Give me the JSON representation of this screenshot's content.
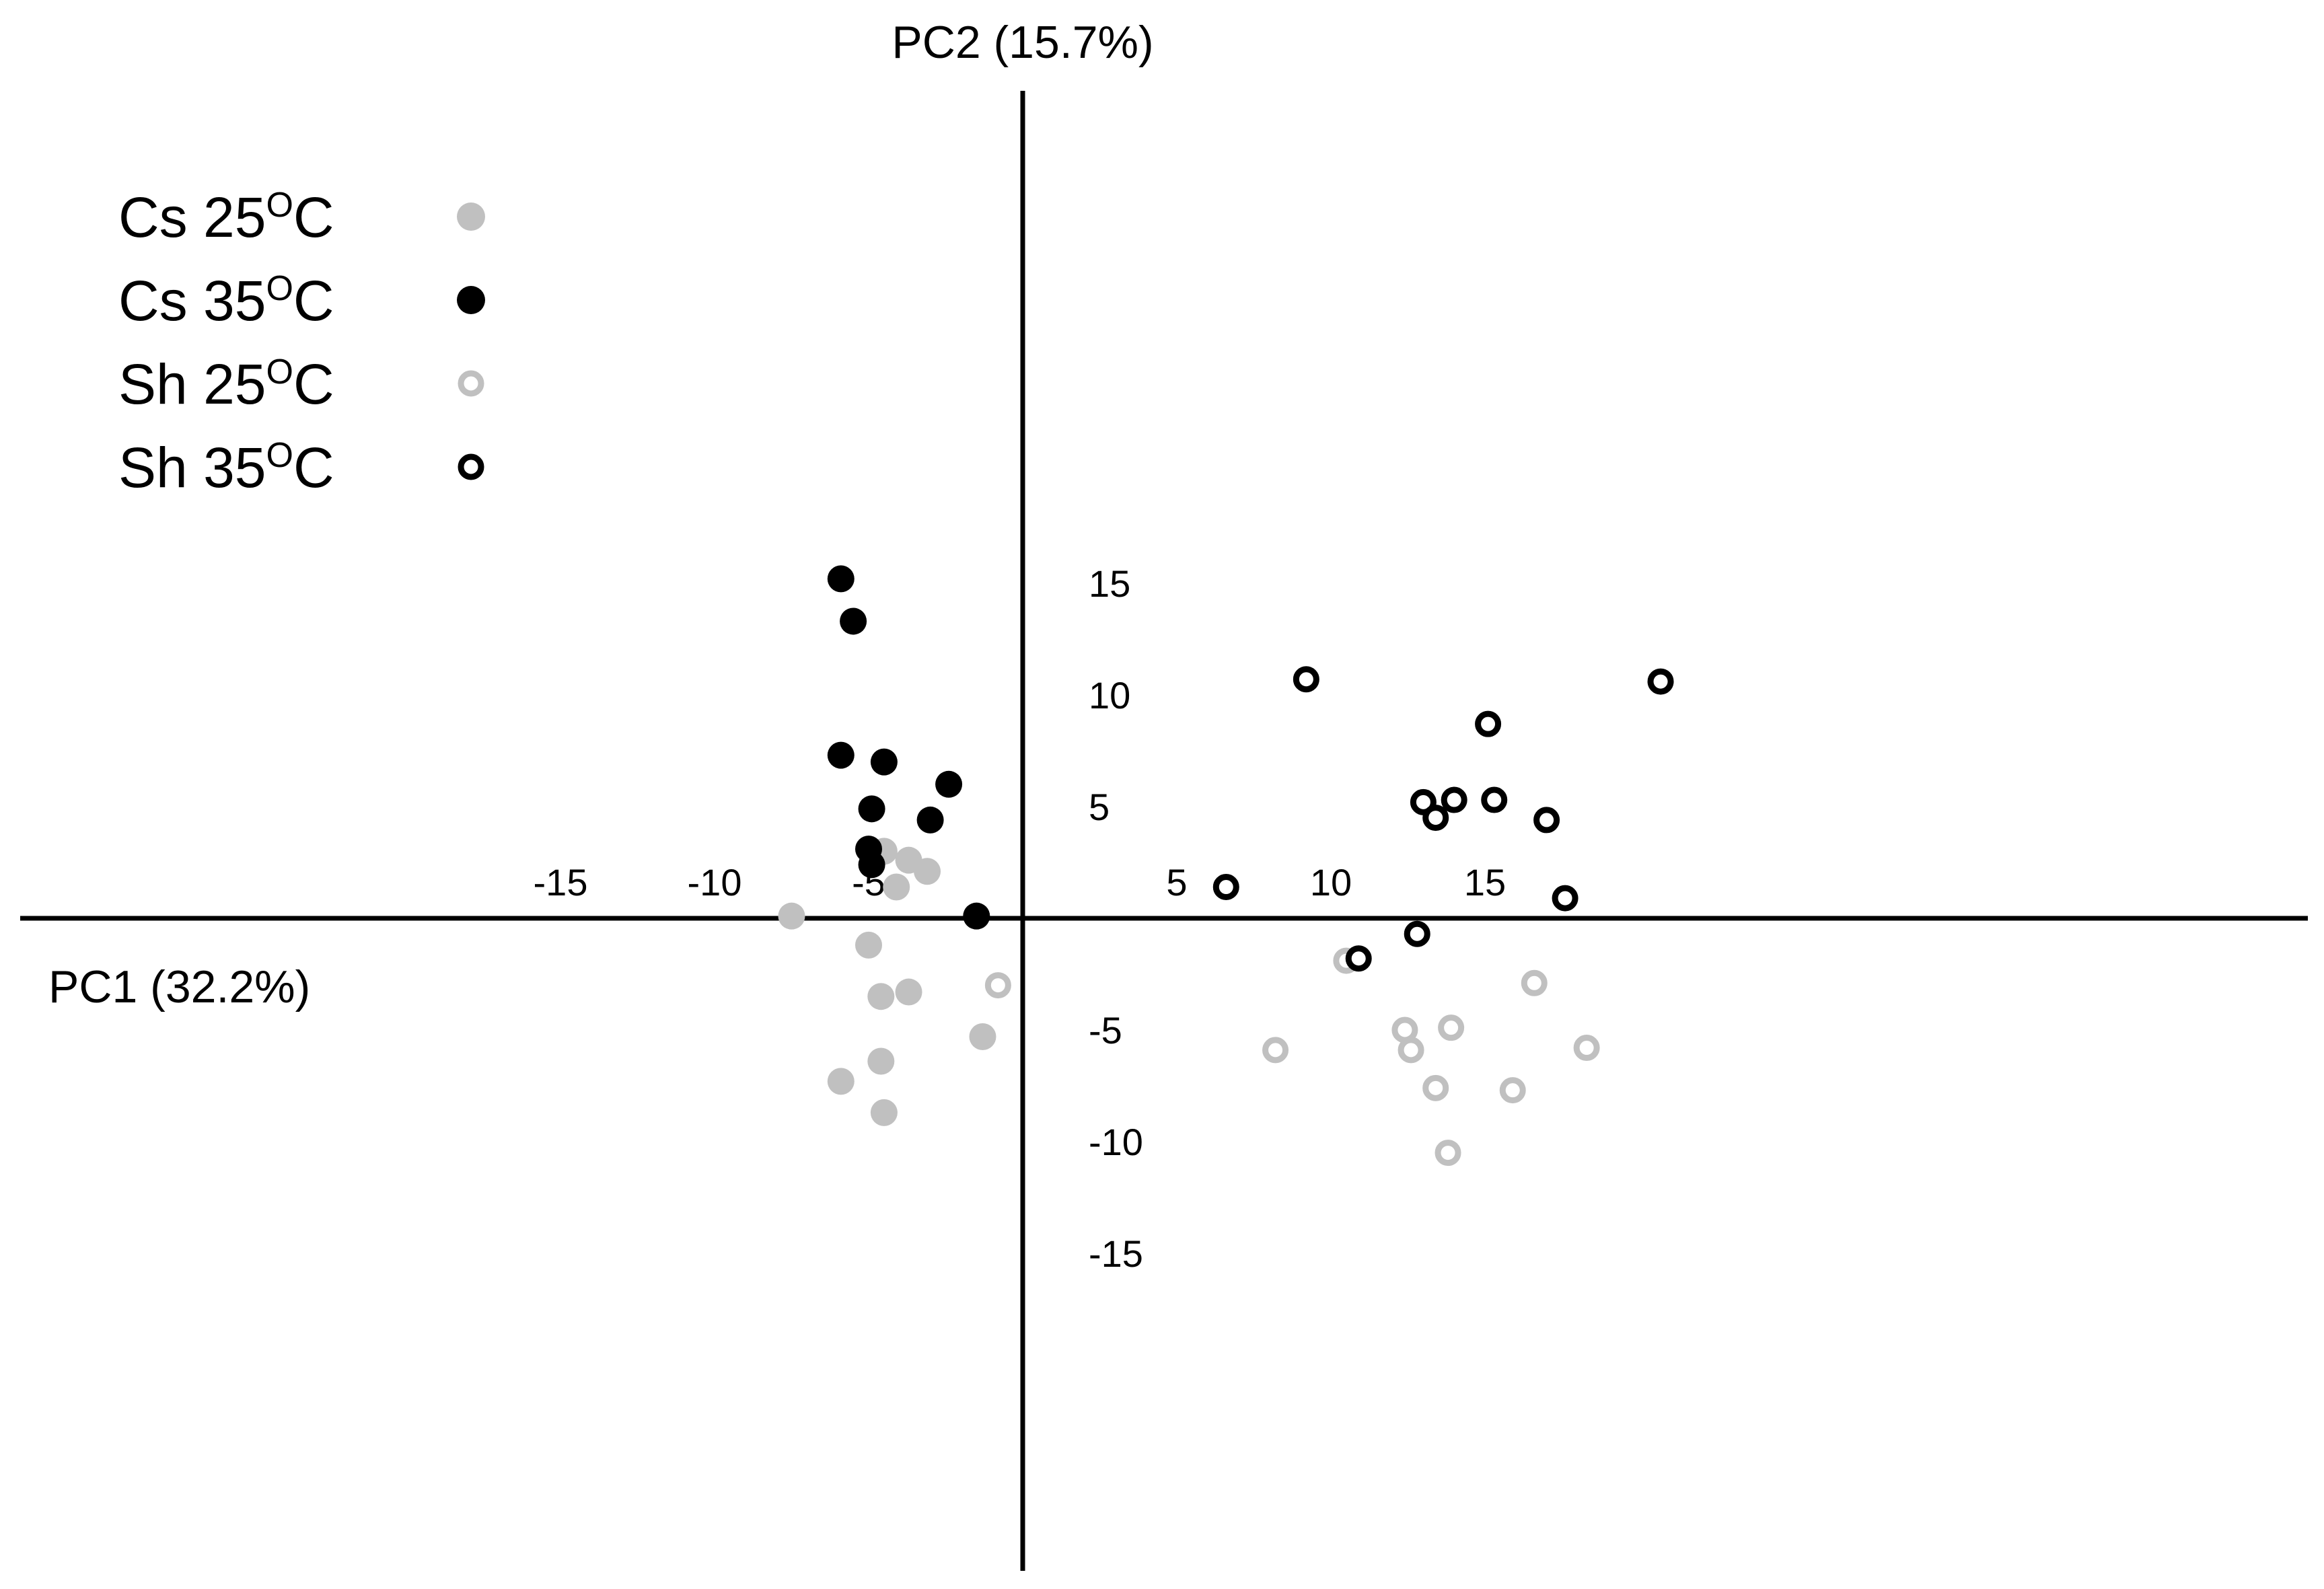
{
  "chart_data": {
    "type": "scatter",
    "title": "",
    "xlabel": "PC1 (32.2%)",
    "ylabel": "PC2 (15.7%)",
    "xlim": [
      -16.5,
      21
    ],
    "ylim": [
      -16,
      19
    ],
    "xticks": [
      -15,
      -10,
      -5,
      5,
      10,
      15
    ],
    "xtick_labels": [
      "-15",
      "-10",
      "-5",
      "5",
      "10",
      "15"
    ],
    "yticks": [
      15,
      10,
      5,
      -5,
      -10,
      -15
    ],
    "ytick_labels": [
      "15",
      "10",
      "5",
      "-5",
      "-10",
      "-15"
    ],
    "grid": false,
    "legend_position": "top-left",
    "series": [
      {
        "name_base": "Cs 25",
        "name_suffix": "C",
        "degree_mark": "O",
        "marker": "filled",
        "color": "#c0c0c0",
        "points": [
          [
            -4.5,
            3.0
          ],
          [
            -3.7,
            2.6
          ],
          [
            -3.1,
            2.1
          ],
          [
            -4.1,
            1.4
          ],
          [
            -7.5,
            0.1
          ],
          [
            -5.0,
            -1.2
          ],
          [
            -4.6,
            -3.5
          ],
          [
            -3.7,
            -3.3
          ],
          [
            -1.3,
            -5.3
          ],
          [
            -4.6,
            -6.4
          ],
          [
            -5.9,
            -7.3
          ],
          [
            -4.5,
            -8.7
          ]
        ]
      },
      {
        "name_base": "Cs 35",
        "name_suffix": "C",
        "degree_mark": "O",
        "marker": "filled",
        "color": "#000000",
        "points": [
          [
            -5.9,
            15.2
          ],
          [
            -5.5,
            13.3
          ],
          [
            -5.9,
            7.3
          ],
          [
            -4.5,
            7.0
          ],
          [
            -2.4,
            6.0
          ],
          [
            -4.9,
            4.9
          ],
          [
            -3.0,
            4.4
          ],
          [
            -5.0,
            3.1
          ],
          [
            -4.9,
            2.4
          ],
          [
            -1.5,
            0.1
          ]
        ]
      },
      {
        "name_base": "Sh 25",
        "name_suffix": "C",
        "degree_mark": "O",
        "marker": "open",
        "color": "#c0c0c0",
        "points": [
          [
            -0.8,
            -3.0
          ],
          [
            10.5,
            -1.9
          ],
          [
            16.6,
            -2.9
          ],
          [
            12.4,
            -5.0
          ],
          [
            13.9,
            -4.9
          ],
          [
            8.2,
            -5.9
          ],
          [
            12.6,
            -5.9
          ],
          [
            18.3,
            -5.8
          ],
          [
            13.4,
            -7.6
          ],
          [
            15.9,
            -7.7
          ],
          [
            13.8,
            -10.5
          ]
        ]
      },
      {
        "name_base": "Sh 35",
        "name_suffix": "C",
        "degree_mark": "O",
        "marker": "open",
        "color": "#000000",
        "points": [
          [
            9.2,
            10.7
          ],
          [
            20.7,
            10.6
          ],
          [
            15.1,
            8.7
          ],
          [
            13.0,
            5.2
          ],
          [
            14.0,
            5.3
          ],
          [
            15.3,
            5.3
          ],
          [
            13.4,
            4.5
          ],
          [
            17.0,
            4.4
          ],
          [
            6.6,
            1.4
          ],
          [
            17.6,
            0.9
          ],
          [
            12.8,
            -0.7
          ],
          [
            10.9,
            -1.8
          ]
        ]
      }
    ]
  }
}
